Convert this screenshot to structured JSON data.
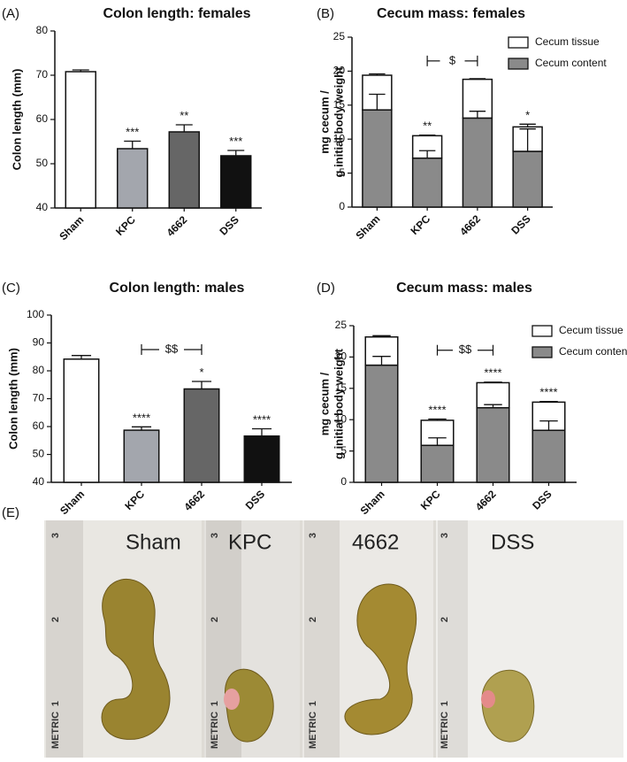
{
  "chart_data": [
    {
      "type": "bar",
      "panel": "(A)",
      "title": "Colon length: females",
      "ylabel": "Colon length (mm)",
      "categories": [
        "Sham",
        "KPC",
        "4662",
        "DSS"
      ],
      "values": [
        70.8,
        53.4,
        57.2,
        51.8
      ],
      "errors": [
        0.4,
        1.7,
        1.6,
        1.2
      ],
      "colors": [
        "#ffffff",
        "#a3a6ad",
        "#666666",
        "#111111"
      ],
      "significance": [
        null,
        "***",
        "**",
        "***"
      ],
      "ylim": [
        40,
        80
      ],
      "yticks": [
        40,
        50,
        60,
        70,
        80
      ]
    },
    {
      "type": "stacked_bar",
      "panel": "(B)",
      "title": "Cecum mass: females",
      "ylabel": [
        "mg cecum /",
        "g initial body weight"
      ],
      "categories": [
        "Sham",
        "KPC",
        "4662",
        "DSS"
      ],
      "series": [
        {
          "name": "Cecum content",
          "color": "#8a8a8a",
          "values": [
            14.3,
            7.2,
            13.1,
            8.2
          ],
          "errors": [
            2.3,
            1.1,
            1.0,
            3.3
          ]
        },
        {
          "name": "Cecum tissue",
          "color": "#ffffff",
          "values": [
            5.1,
            3.3,
            5.7,
            3.6
          ],
          "errors": [
            0.2,
            0.1,
            0.1,
            0.4
          ]
        }
      ],
      "significance": [
        null,
        "**",
        null,
        "*"
      ],
      "bracket": {
        "label": "$",
        "from": "KPC",
        "to": "4662"
      },
      "legend": "upper right",
      "ylim": [
        0,
        25
      ],
      "yticks": [
        0,
        5,
        10,
        15,
        20,
        25
      ]
    },
    {
      "type": "bar",
      "panel": "(C)",
      "title": "Colon length: males",
      "ylabel": "Colon length (mm)",
      "categories": [
        "Sham",
        "KPC",
        "4662",
        "DSS"
      ],
      "values": [
        84.2,
        58.7,
        73.5,
        56.6
      ],
      "errors": [
        1.3,
        1.2,
        2.7,
        2.6
      ],
      "colors": [
        "#ffffff",
        "#a3a6ad",
        "#666666",
        "#111111"
      ],
      "significance": [
        null,
        "****",
        "*",
        "****"
      ],
      "bracket": {
        "label": "$$",
        "from": "KPC",
        "to": "4662"
      },
      "ylim": [
        40,
        100
      ],
      "yticks": [
        40,
        50,
        60,
        70,
        80,
        90,
        100
      ]
    },
    {
      "type": "stacked_bar",
      "panel": "(D)",
      "title": "Cecum mass: males",
      "ylabel": [
        "mg cecum /",
        "g initial body weight"
      ],
      "categories": [
        "Sham",
        "KPC",
        "4662",
        "DSS"
      ],
      "series": [
        {
          "name": "Cecum content",
          "color": "#8a8a8a",
          "values": [
            18.7,
            5.9,
            11.9,
            8.3
          ],
          "errors": [
            1.4,
            1.2,
            0.5,
            1.5
          ]
        },
        {
          "name": "Cecum tissue",
          "color": "#ffffff",
          "values": [
            4.5,
            4.0,
            4.0,
            4.5
          ],
          "errors": [
            0.2,
            0.2,
            0.1,
            0.1
          ]
        }
      ],
      "significance": [
        null,
        "****",
        "****",
        "****"
      ],
      "bracket": {
        "label": "$$",
        "from": "KPC",
        "to": "4662"
      },
      "legend": "upper right",
      "ylim": [
        0,
        25
      ],
      "yticks": [
        0,
        5,
        10,
        15,
        20,
        25
      ]
    }
  ],
  "photo": {
    "panel": "(E)",
    "labels": [
      "Sham",
      "KPC",
      "4662",
      "DSS"
    ],
    "ruler_labels": [
      "3",
      "2",
      "1",
      "METRIC"
    ]
  }
}
